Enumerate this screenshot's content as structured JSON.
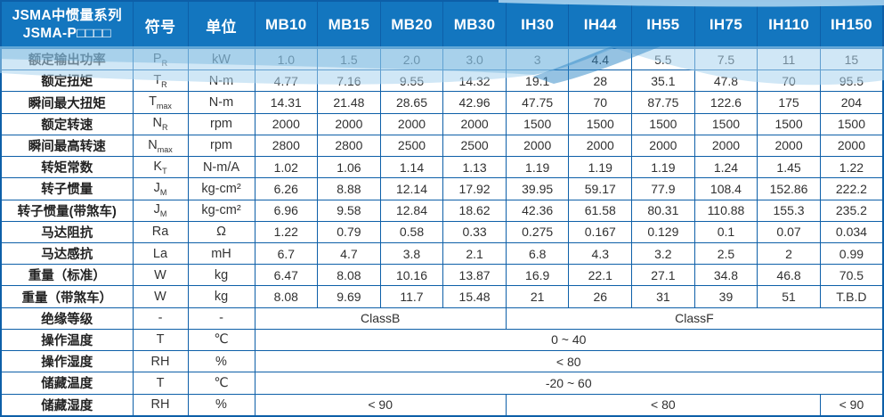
{
  "header": {
    "title_line1": "JSMA中惯量系列",
    "title_line2": "JSMA-P□□□□",
    "symbol_label": "符号",
    "unit_label": "单位",
    "models": [
      "MB10",
      "MB15",
      "MB20",
      "MB30",
      "IH30",
      "IH44",
      "IH55",
      "IH75",
      "IH110",
      "IH150"
    ]
  },
  "rows": [
    {
      "label": "额定输出功率",
      "symbol": "P",
      "sub": "R",
      "unit": "kW",
      "values": [
        "1.0",
        "1.5",
        "2.0",
        "3.0",
        "3",
        "4.4",
        "5.5",
        "7.5",
        "11",
        "15"
      ]
    },
    {
      "label": "额定扭矩",
      "symbol": "T",
      "sub": "R",
      "unit": "N-m",
      "values": [
        "4.77",
        "7.16",
        "9.55",
        "14.32",
        "19.1",
        "28",
        "35.1",
        "47.8",
        "70",
        "95.5"
      ]
    },
    {
      "label": "瞬间最大扭矩",
      "symbol": "T",
      "sub": "max",
      "unit": "N-m",
      "values": [
        "14.31",
        "21.48",
        "28.65",
        "42.96",
        "47.75",
        "70",
        "87.75",
        "122.6",
        "175",
        "204"
      ]
    },
    {
      "label": "额定转速",
      "symbol": "N",
      "sub": "R",
      "unit": "rpm",
      "values": [
        "2000",
        "2000",
        "2000",
        "2000",
        "1500",
        "1500",
        "1500",
        "1500",
        "1500",
        "1500"
      ]
    },
    {
      "label": "瞬间最高转速",
      "symbol": "N",
      "sub": "max",
      "unit": "rpm",
      "values": [
        "2800",
        "2800",
        "2500",
        "2500",
        "2000",
        "2000",
        "2000",
        "2000",
        "2000",
        "2000"
      ]
    },
    {
      "label": "转矩常数",
      "symbol": "K",
      "sub": "T",
      "unit": "N-m/A",
      "values": [
        "1.02",
        "1.06",
        "1.14",
        "1.13",
        "1.19",
        "1.19",
        "1.19",
        "1.24",
        "1.45",
        "1.22"
      ]
    },
    {
      "label": "转子惯量",
      "symbol": "J",
      "sub": "M",
      "unit": "kg-cm²",
      "values": [
        "6.26",
        "8.88",
        "12.14",
        "17.92",
        "39.95",
        "59.17",
        "77.9",
        "108.4",
        "152.86",
        "222.2"
      ]
    },
    {
      "label": "转子惯量(带煞车)",
      "symbol": "J",
      "sub": "M",
      "unit": "kg-cm²",
      "values": [
        "6.96",
        "9.58",
        "12.84",
        "18.62",
        "42.36",
        "61.58",
        "80.31",
        "110.88",
        "155.3",
        "235.2"
      ]
    },
    {
      "label": "马达阻抗",
      "symbol": "Ra",
      "sub": "",
      "unit": "Ω",
      "values": [
        "1.22",
        "0.79",
        "0.58",
        "0.33",
        "0.275",
        "0.167",
        "0.129",
        "0.1",
        "0.07",
        "0.034"
      ]
    },
    {
      "label": "马达感抗",
      "symbol": "La",
      "sub": "",
      "unit": "mH",
      "values": [
        "6.7",
        "4.7",
        "3.8",
        "2.1",
        "6.8",
        "4.3",
        "3.2",
        "2.5",
        "2",
        "0.99"
      ]
    },
    {
      "label": "重量（标准）",
      "symbol": "W",
      "sub": "",
      "unit": "kg",
      "values": [
        "6.47",
        "8.08",
        "10.16",
        "13.87",
        "16.9",
        "22.1",
        "27.1",
        "34.8",
        "46.8",
        "70.5"
      ]
    },
    {
      "label": "重量（带煞车）",
      "symbol": "W",
      "sub": "",
      "unit": "kg",
      "values": [
        "8.08",
        "9.69",
        "11.7",
        "15.48",
        "21",
        "26",
        "31",
        "39",
        "51",
        "T.B.D"
      ]
    },
    {
      "label": "绝缘等级",
      "symbol": "-",
      "sub": "",
      "unit": "-",
      "spans": [
        {
          "text": "ClassB",
          "cols": 4
        },
        {
          "text": "ClassF",
          "cols": 6
        }
      ]
    },
    {
      "label": "操作温度",
      "symbol": "T",
      "sub": "",
      "unit": "℃",
      "spans": [
        {
          "text": "0 ~ 40",
          "cols": 10
        }
      ]
    },
    {
      "label": "操作湿度",
      "symbol": "RH",
      "sub": "",
      "unit": "%",
      "spans": [
        {
          "text": "< 80",
          "cols": 10
        }
      ]
    },
    {
      "label": "储藏温度",
      "symbol": "T",
      "sub": "",
      "unit": "℃",
      "spans": [
        {
          "text": "-20 ~ 60",
          "cols": 10
        }
      ]
    },
    {
      "label": "储藏湿度",
      "symbol": "RH",
      "sub": "",
      "unit": "%",
      "spans": [
        {
          "text": "< 90",
          "cols": 4
        },
        {
          "text": "< 80",
          "cols": 5
        },
        {
          "text": "< 90",
          "cols": 1
        }
      ]
    }
  ],
  "colors": {
    "header_bg": "#1376BF",
    "border": "#0D5FA8",
    "header_text": "#FFFFFF",
    "body_text": "#303030",
    "wave_light": "#A9D3EE",
    "wave_mid": "#5FA8D8",
    "wave_deep": "#2B86C6"
  }
}
